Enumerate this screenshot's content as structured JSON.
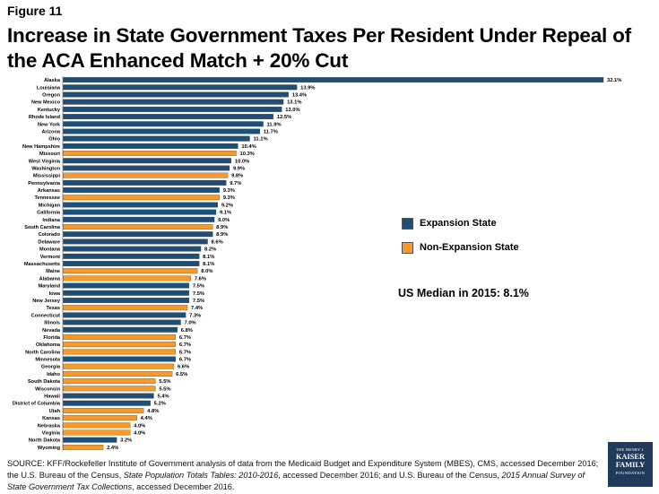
{
  "figure_label": "Figure 11",
  "title": "Increase in State Government Taxes Per Resident Under Repeal of the ACA Enhanced Match + 20% Cut",
  "chart_data": {
    "type": "bar",
    "orientation": "horizontal",
    "value_format": "percent_1dp",
    "xlim": [
      0,
      32.1
    ],
    "grid": false,
    "legend_placement": "right",
    "series": [
      {
        "name": "Expansion State",
        "color": "#1f4e79"
      },
      {
        "name": "Non-Expansion State",
        "color": "#f79a2a"
      }
    ],
    "rows": [
      {
        "state": "Alaska",
        "value": 32.1,
        "group": "Expansion State"
      },
      {
        "state": "Louisiana",
        "value": 13.9,
        "group": "Expansion State"
      },
      {
        "state": "Oregon",
        "value": 13.4,
        "group": "Expansion State"
      },
      {
        "state": "New Mexico",
        "value": 13.1,
        "group": "Expansion State"
      },
      {
        "state": "Kentucky",
        "value": 13.0,
        "group": "Expansion State"
      },
      {
        "state": "Rhode Island",
        "value": 12.5,
        "group": "Expansion State"
      },
      {
        "state": "New York",
        "value": 11.9,
        "group": "Expansion State"
      },
      {
        "state": "Arizona",
        "value": 11.7,
        "group": "Expansion State"
      },
      {
        "state": "Ohio",
        "value": 11.1,
        "group": "Expansion State"
      },
      {
        "state": "New Hampshire",
        "value": 10.4,
        "group": "Expansion State"
      },
      {
        "state": "Missouri",
        "value": 10.3,
        "group": "Non-Expansion State"
      },
      {
        "state": "West Virginia",
        "value": 10.0,
        "group": "Expansion State"
      },
      {
        "state": "Washington",
        "value": 9.9,
        "group": "Expansion State"
      },
      {
        "state": "Mississippi",
        "value": 9.8,
        "group": "Non-Expansion State"
      },
      {
        "state": "Pennsylvania",
        "value": 9.7,
        "group": "Expansion State"
      },
      {
        "state": "Arkansas",
        "value": 9.3,
        "group": "Expansion State"
      },
      {
        "state": "Tennessee",
        "value": 9.3,
        "group": "Non-Expansion State"
      },
      {
        "state": "Michigan",
        "value": 9.2,
        "group": "Expansion State"
      },
      {
        "state": "California",
        "value": 9.1,
        "group": "Expansion State"
      },
      {
        "state": "Indiana",
        "value": 9.0,
        "group": "Expansion State"
      },
      {
        "state": "South Carolina",
        "value": 8.9,
        "group": "Non-Expansion State"
      },
      {
        "state": "Colorado",
        "value": 8.9,
        "group": "Expansion State"
      },
      {
        "state": "Delaware",
        "value": 8.6,
        "group": "Expansion State"
      },
      {
        "state": "Montana",
        "value": 8.2,
        "group": "Expansion State"
      },
      {
        "state": "Vermont",
        "value": 8.1,
        "group": "Expansion State"
      },
      {
        "state": "Massachusetts",
        "value": 8.1,
        "group": "Expansion State"
      },
      {
        "state": "Maine",
        "value": 8.0,
        "group": "Non-Expansion State"
      },
      {
        "state": "Alabama",
        "value": 7.6,
        "group": "Non-Expansion State"
      },
      {
        "state": "Maryland",
        "value": 7.5,
        "group": "Expansion State"
      },
      {
        "state": "Iowa",
        "value": 7.5,
        "group": "Expansion State"
      },
      {
        "state": "New Jersey",
        "value": 7.5,
        "group": "Expansion State"
      },
      {
        "state": "Texas",
        "value": 7.4,
        "group": "Non-Expansion State"
      },
      {
        "state": "Connecticut",
        "value": 7.3,
        "group": "Expansion State"
      },
      {
        "state": "Illinois",
        "value": 7.0,
        "group": "Expansion State"
      },
      {
        "state": "Nevada",
        "value": 6.8,
        "group": "Expansion State"
      },
      {
        "state": "Florida",
        "value": 6.7,
        "group": "Non-Expansion State"
      },
      {
        "state": "Oklahoma",
        "value": 6.7,
        "group": "Non-Expansion State"
      },
      {
        "state": "North Carolina",
        "value": 6.7,
        "group": "Non-Expansion State"
      },
      {
        "state": "Minnesota",
        "value": 6.7,
        "group": "Expansion State"
      },
      {
        "state": "Georgia",
        "value": 6.6,
        "group": "Non-Expansion State"
      },
      {
        "state": "Idaho",
        "value": 6.5,
        "group": "Non-Expansion State"
      },
      {
        "state": "South Dakota",
        "value": 5.5,
        "group": "Non-Expansion State"
      },
      {
        "state": "Wisconsin",
        "value": 5.5,
        "group": "Non-Expansion State"
      },
      {
        "state": "Hawaii",
        "value": 5.4,
        "group": "Expansion State"
      },
      {
        "state": "District of Columbia",
        "value": 5.2,
        "group": "Expansion State"
      },
      {
        "state": "Utah",
        "value": 4.8,
        "group": "Non-Expansion State"
      },
      {
        "state": "Kansas",
        "value": 4.4,
        "group": "Non-Expansion State"
      },
      {
        "state": "Nebraska",
        "value": 4.0,
        "group": "Non-Expansion State"
      },
      {
        "state": "Virginia",
        "value": 4.0,
        "group": "Non-Expansion State"
      },
      {
        "state": "North Dakota",
        "value": 3.2,
        "group": "Expansion State"
      },
      {
        "state": "Wyoming",
        "value": 2.4,
        "group": "Non-Expansion State"
      }
    ],
    "annotation": "US Median in 2015: 8.1%"
  },
  "source": {
    "prefix": "SOURCE:  KFF/Rockefeller Institute of Government  analysis of data from the  Medicaid Budget and Expenditure System (MBES), CMS, accessed December 2016; the U.S. Bureau of the Census, ",
    "italic1": "State Population Totals Tables: 2010-2016",
    "middle": ", accessed December  2016; and U.S. Bureau of the Census, ",
    "italic2": "2015 Annual Survey of State  Government Tax Collections",
    "suffix": ", accessed December  2016."
  },
  "logo": {
    "line1": "THE HENRY J.",
    "line2a": "KAISER",
    "line2b": "FAMILY",
    "line3": "FOUNDATION"
  }
}
